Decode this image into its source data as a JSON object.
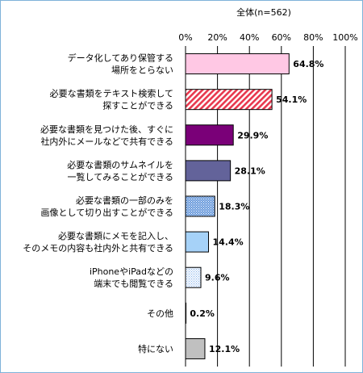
{
  "chart_data": {
    "type": "bar",
    "orientation": "horizontal",
    "title": "全体(n=562)",
    "xlim": [
      0,
      100
    ],
    "ticks": [
      "0%",
      "20%",
      "40%",
      "60%",
      "80%",
      "100%"
    ],
    "grid": true,
    "categories": [
      [
        "データ化してあり保管する",
        "場所をとらない"
      ],
      [
        "必要な書類をテキスト検索して",
        "探すことができる"
      ],
      [
        "必要な書類を見つけた後、すぐに",
        "社内外にメールなどで共有できる"
      ],
      [
        "必要な書類のサムネイルを",
        "一覧してみることができる"
      ],
      [
        "必要な書類の一部のみを",
        "画像として切り出すことができる"
      ],
      [
        "必要な書類にメモを記入し、",
        "そのメモの内容も社内外と共有できる"
      ],
      [
        "iPhoneやiPadなどの",
        "端末でも閲覧できる"
      ],
      [
        "その他"
      ],
      [
        "特にない"
      ]
    ],
    "values": [
      64.8,
      54.1,
      29.9,
      28.1,
      18.3,
      14.4,
      9.6,
      0.2,
      12.1
    ],
    "value_labels": [
      "64.8%",
      "54.1%",
      "29.9%",
      "28.1%",
      "18.3%",
      "14.4%",
      "9.6%",
      "0.2%",
      "12.1%"
    ],
    "bar_styles": [
      {
        "fill": "#ffc8e4",
        "pattern": "none"
      },
      {
        "fill": "#e8384e",
        "pattern": "diagonal"
      },
      {
        "fill": "#7a0078",
        "pattern": "none"
      },
      {
        "fill": "#63639a",
        "pattern": "none"
      },
      {
        "fill": "#6c9cdc",
        "pattern": "dots"
      },
      {
        "fill": "#a6d2f8",
        "pattern": "none"
      },
      {
        "fill": "#eef6ff",
        "pattern": "dots-light"
      },
      {
        "fill": "#ffffff",
        "pattern": "none"
      },
      {
        "fill": "#c0c0c0",
        "pattern": "none"
      }
    ]
  },
  "colors": {
    "frame": "#7fb2d9",
    "grid": "#000000",
    "text": "#000000"
  }
}
